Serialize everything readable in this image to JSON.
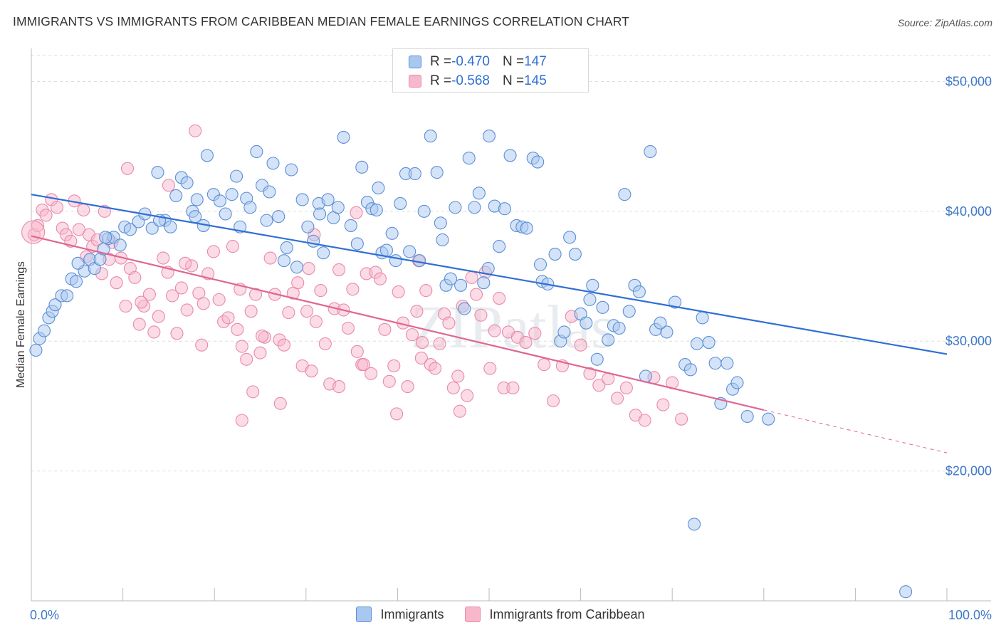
{
  "title": "IMMIGRANTS VS IMMIGRANTS FROM CARIBBEAN MEDIAN FEMALE EARNINGS CORRELATION CHART",
  "source": "Source: ZipAtlas.com",
  "watermark": "ZIPatlas",
  "colors": {
    "blue_fill": "#a9c8f0",
    "blue_stroke": "#5b8fd6",
    "blue_line": "#2f6fd4",
    "pink_fill": "#f7b8cc",
    "pink_stroke": "#e98aa9",
    "pink_line": "#e0668f",
    "axis_label": "#3f78c8",
    "grid": "#dddddd"
  },
  "legend": {
    "rows": [
      {
        "r_label": "R = ",
        "r_value": "-0.470",
        "n_label": "N = ",
        "n_value": "147"
      },
      {
        "r_label": "R = ",
        "r_value": "-0.568",
        "n_label": "N = ",
        "n_value": "145"
      }
    ]
  },
  "bottom_legend": [
    "Immigrants",
    "Immigrants from Caribbean"
  ],
  "chart_data": {
    "type": "scatter",
    "xlabel": "",
    "ylabel": "Median Female Earnings",
    "xlim": [
      0,
      100
    ],
    "ylim": [
      10000,
      52000
    ],
    "x_tick_labels": [
      "0.0%",
      "100.0%"
    ],
    "y_ticks": [
      20000,
      30000,
      40000,
      50000
    ],
    "y_tick_labels": [
      "$20,000",
      "$30,000",
      "$40,000",
      "$50,000"
    ],
    "grid": true,
    "series": [
      {
        "name": "Immigrants",
        "r": -0.47,
        "n": 147,
        "trend": {
          "x": [
            0,
            100
          ],
          "y": [
            41300,
            29000
          ]
        },
        "points": [
          [
            0.5,
            29300
          ],
          [
            0.9,
            30200
          ],
          [
            1.4,
            30800
          ],
          [
            1.9,
            31800
          ],
          [
            2.3,
            32300
          ],
          [
            2.6,
            32800
          ],
          [
            3.3,
            33500
          ],
          [
            3.9,
            33500
          ],
          [
            4.4,
            34800
          ],
          [
            4.9,
            34600
          ],
          [
            5.8,
            35400
          ],
          [
            6.4,
            36300
          ],
          [
            6.9,
            35600
          ],
          [
            7.5,
            36300
          ],
          [
            7.9,
            37100
          ],
          [
            8.4,
            37900
          ],
          [
            9.0,
            38000
          ],
          [
            9.7,
            37400
          ],
          [
            10.2,
            38800
          ],
          [
            10.8,
            38600
          ],
          [
            11.7,
            39200
          ],
          [
            12.4,
            39800
          ],
          [
            13.2,
            38700
          ],
          [
            13.8,
            43000
          ],
          [
            14.6,
            39300
          ],
          [
            15.2,
            38800
          ],
          [
            15.8,
            41200
          ],
          [
            16.4,
            42600
          ],
          [
            17.0,
            42200
          ],
          [
            17.6,
            40000
          ],
          [
            18.1,
            40900
          ],
          [
            18.8,
            38900
          ],
          [
            19.2,
            44300
          ],
          [
            19.9,
            41300
          ],
          [
            20.6,
            40800
          ],
          [
            21.2,
            39800
          ],
          [
            21.9,
            41300
          ],
          [
            22.4,
            42700
          ],
          [
            22.8,
            38800
          ],
          [
            23.5,
            41000
          ],
          [
            23.9,
            40300
          ],
          [
            24.6,
            44600
          ],
          [
            25.2,
            42000
          ],
          [
            25.7,
            39300
          ],
          [
            26.4,
            43700
          ],
          [
            27.0,
            39600
          ],
          [
            27.6,
            36200
          ],
          [
            27.9,
            37200
          ],
          [
            28.4,
            43200
          ],
          [
            29.0,
            35700
          ],
          [
            29.6,
            40900
          ],
          [
            30.2,
            38800
          ],
          [
            30.8,
            37700
          ],
          [
            31.4,
            40600
          ],
          [
            31.9,
            36800
          ],
          [
            32.4,
            40900
          ],
          [
            33.0,
            39500
          ],
          [
            33.5,
            40300
          ],
          [
            34.1,
            45700
          ],
          [
            34.9,
            38900
          ],
          [
            35.6,
            37500
          ],
          [
            36.1,
            43400
          ],
          [
            36.7,
            40700
          ],
          [
            37.2,
            40200
          ],
          [
            37.7,
            40100
          ],
          [
            38.3,
            36800
          ],
          [
            38.8,
            37000
          ],
          [
            39.4,
            38300
          ],
          [
            39.8,
            36200
          ],
          [
            40.3,
            40600
          ],
          [
            40.9,
            42900
          ],
          [
            41.3,
            36900
          ],
          [
            41.9,
            42900
          ],
          [
            42.4,
            36200
          ],
          [
            42.9,
            40000
          ],
          [
            43.6,
            45800
          ],
          [
            44.3,
            43000
          ],
          [
            44.7,
            39100
          ],
          [
            45.3,
            34300
          ],
          [
            45.8,
            34800
          ],
          [
            46.3,
            40300
          ],
          [
            46.9,
            34300
          ],
          [
            47.3,
            32500
          ],
          [
            47.8,
            44100
          ],
          [
            48.4,
            40300
          ],
          [
            48.9,
            41400
          ],
          [
            49.4,
            34500
          ],
          [
            50.0,
            45800
          ],
          [
            50.6,
            40400
          ],
          [
            51.1,
            37300
          ],
          [
            51.7,
            40200
          ],
          [
            52.3,
            44300
          ],
          [
            53.0,
            38900
          ],
          [
            53.6,
            38800
          ],
          [
            54.1,
            38700
          ],
          [
            54.8,
            44100
          ],
          [
            55.3,
            43800
          ],
          [
            55.8,
            34600
          ],
          [
            56.4,
            34400
          ],
          [
            57.2,
            36700
          ],
          [
            57.8,
            30000
          ],
          [
            58.2,
            30700
          ],
          [
            58.8,
            38000
          ],
          [
            59.4,
            36700
          ],
          [
            60.0,
            32100
          ],
          [
            60.6,
            31400
          ],
          [
            61.3,
            34300
          ],
          [
            61.8,
            28600
          ],
          [
            62.4,
            32600
          ],
          [
            63.0,
            30100
          ],
          [
            63.6,
            31200
          ],
          [
            64.2,
            31000
          ],
          [
            64.8,
            41300
          ],
          [
            65.3,
            32300
          ],
          [
            65.9,
            34300
          ],
          [
            66.4,
            33800
          ],
          [
            67.1,
            27300
          ],
          [
            67.6,
            44600
          ],
          [
            68.2,
            30900
          ],
          [
            69.4,
            30700
          ],
          [
            70.3,
            33000
          ],
          [
            71.4,
            28200
          ],
          [
            72.0,
            27800
          ],
          [
            72.7,
            29800
          ],
          [
            73.3,
            31800
          ],
          [
            74.0,
            29900
          ],
          [
            74.7,
            28300
          ],
          [
            75.3,
            25200
          ],
          [
            76.0,
            28300
          ],
          [
            76.6,
            26300
          ],
          [
            77.1,
            26800
          ],
          [
            78.2,
            24200
          ],
          [
            80.5,
            24000
          ],
          [
            72.4,
            15900
          ],
          [
            95.5,
            10700
          ],
          [
            5.1,
            36000
          ],
          [
            8.1,
            38000
          ],
          [
            14.0,
            39300
          ],
          [
            17.9,
            39600
          ],
          [
            26.0,
            41500
          ],
          [
            31.5,
            39800
          ],
          [
            37.9,
            41800
          ],
          [
            44.9,
            37800
          ],
          [
            49.9,
            35600
          ],
          [
            55.6,
            35900
          ],
          [
            61.0,
            33200
          ],
          [
            68.7,
            31400
          ]
        ]
      },
      {
        "name": "Immigrants from Caribbean",
        "r": -0.568,
        "n": 145,
        "trend": {
          "x": [
            0,
            80
          ],
          "y": [
            38100,
            24700
          ]
        },
        "trend_extension": {
          "x": [
            80,
            100
          ],
          "y": [
            24700,
            21400
          ]
        },
        "points": [
          [
            0.3,
            38200
          ],
          [
            0.7,
            38900
          ],
          [
            1.2,
            40100
          ],
          [
            1.6,
            39700
          ],
          [
            2.2,
            40900
          ],
          [
            2.8,
            40300
          ],
          [
            3.4,
            38700
          ],
          [
            3.8,
            38200
          ],
          [
            4.3,
            37700
          ],
          [
            4.7,
            40800
          ],
          [
            5.2,
            38600
          ],
          [
            5.7,
            40100
          ],
          [
            6.3,
            38200
          ],
          [
            6.7,
            37300
          ],
          [
            7.2,
            37800
          ],
          [
            7.7,
            35200
          ],
          [
            8.0,
            40000
          ],
          [
            8.5,
            36300
          ],
          [
            8.8,
            37600
          ],
          [
            9.3,
            34500
          ],
          [
            9.8,
            36400
          ],
          [
            10.3,
            32700
          ],
          [
            10.8,
            35600
          ],
          [
            11.3,
            34900
          ],
          [
            11.8,
            31300
          ],
          [
            12.3,
            32700
          ],
          [
            12.9,
            33600
          ],
          [
            13.4,
            30700
          ],
          [
            13.9,
            31900
          ],
          [
            14.4,
            36400
          ],
          [
            14.9,
            35300
          ],
          [
            15.4,
            33500
          ],
          [
            15.9,
            30600
          ],
          [
            16.4,
            34100
          ],
          [
            17.0,
            32400
          ],
          [
            17.5,
            35800
          ],
          [
            17.9,
            46200
          ],
          [
            18.3,
            33700
          ],
          [
            18.8,
            32900
          ],
          [
            19.3,
            35200
          ],
          [
            19.9,
            36900
          ],
          [
            20.5,
            33200
          ],
          [
            21.0,
            31500
          ],
          [
            21.5,
            31800
          ],
          [
            22.0,
            37300
          ],
          [
            22.5,
            30900
          ],
          [
            23.0,
            29600
          ],
          [
            23.5,
            28600
          ],
          [
            24.0,
            32300
          ],
          [
            24.5,
            33600
          ],
          [
            25.0,
            29100
          ],
          [
            25.5,
            30300
          ],
          [
            26.1,
            36400
          ],
          [
            26.6,
            33600
          ],
          [
            27.1,
            30100
          ],
          [
            27.6,
            29700
          ],
          [
            28.1,
            32200
          ],
          [
            28.6,
            33700
          ],
          [
            29.1,
            34500
          ],
          [
            29.6,
            28100
          ],
          [
            30.1,
            32300
          ],
          [
            30.6,
            27700
          ],
          [
            31.1,
            31500
          ],
          [
            31.6,
            33900
          ],
          [
            32.1,
            29800
          ],
          [
            32.6,
            26700
          ],
          [
            33.1,
            32500
          ],
          [
            33.6,
            35500
          ],
          [
            34.1,
            32400
          ],
          [
            34.6,
            31000
          ],
          [
            35.1,
            34000
          ],
          [
            35.6,
            29200
          ],
          [
            36.1,
            28200
          ],
          [
            36.6,
            35200
          ],
          [
            37.1,
            27500
          ],
          [
            37.6,
            35300
          ],
          [
            38.1,
            34800
          ],
          [
            38.6,
            30900
          ],
          [
            39.1,
            26900
          ],
          [
            39.6,
            28100
          ],
          [
            40.1,
            33800
          ],
          [
            40.6,
            31400
          ],
          [
            41.1,
            26500
          ],
          [
            41.6,
            30500
          ],
          [
            42.1,
            32300
          ],
          [
            42.6,
            28700
          ],
          [
            43.1,
            33900
          ],
          [
            43.6,
            28200
          ],
          [
            44.1,
            27900
          ],
          [
            44.6,
            29800
          ],
          [
            45.1,
            32100
          ],
          [
            45.6,
            31400
          ],
          [
            46.1,
            26400
          ],
          [
            46.6,
            27300
          ],
          [
            47.1,
            32700
          ],
          [
            47.6,
            25800
          ],
          [
            48.1,
            34900
          ],
          [
            48.6,
            33600
          ],
          [
            49.1,
            32000
          ],
          [
            49.6,
            35300
          ],
          [
            50.1,
            27900
          ],
          [
            50.6,
            30800
          ],
          [
            51.1,
            33300
          ],
          [
            51.6,
            26400
          ],
          [
            52.1,
            30700
          ],
          [
            52.6,
            26400
          ],
          [
            53.1,
            30300
          ],
          [
            54.0,
            29900
          ],
          [
            55.0,
            30600
          ],
          [
            56.0,
            28200
          ],
          [
            57.0,
            25400
          ],
          [
            58.0,
            28100
          ],
          [
            59.0,
            31900
          ],
          [
            60.0,
            29700
          ],
          [
            61.0,
            27500
          ],
          [
            62.0,
            26600
          ],
          [
            63.0,
            27100
          ],
          [
            64.0,
            25600
          ],
          [
            65.0,
            26400
          ],
          [
            66.0,
            24300
          ],
          [
            67.0,
            23900
          ],
          [
            68.0,
            27200
          ],
          [
            69.0,
            25100
          ],
          [
            70.0,
            26800
          ],
          [
            71.0,
            24000
          ],
          [
            6.0,
            36500
          ],
          [
            12.0,
            33000
          ],
          [
            16.8,
            36000
          ],
          [
            22.8,
            34000
          ],
          [
            25.2,
            30400
          ],
          [
            30.3,
            35600
          ],
          [
            36.3,
            28200
          ],
          [
            42.7,
            29900
          ],
          [
            24.2,
            26100
          ],
          [
            18.6,
            29700
          ],
          [
            27.2,
            25200
          ],
          [
            33.6,
            26500
          ],
          [
            39.9,
            24400
          ],
          [
            46.8,
            24600
          ],
          [
            23.0,
            23900
          ],
          [
            15.0,
            42000
          ],
          [
            10.5,
            43300
          ],
          [
            30.9,
            38200
          ],
          [
            35.5,
            39900
          ],
          [
            42.3,
            36200
          ]
        ]
      }
    ]
  }
}
